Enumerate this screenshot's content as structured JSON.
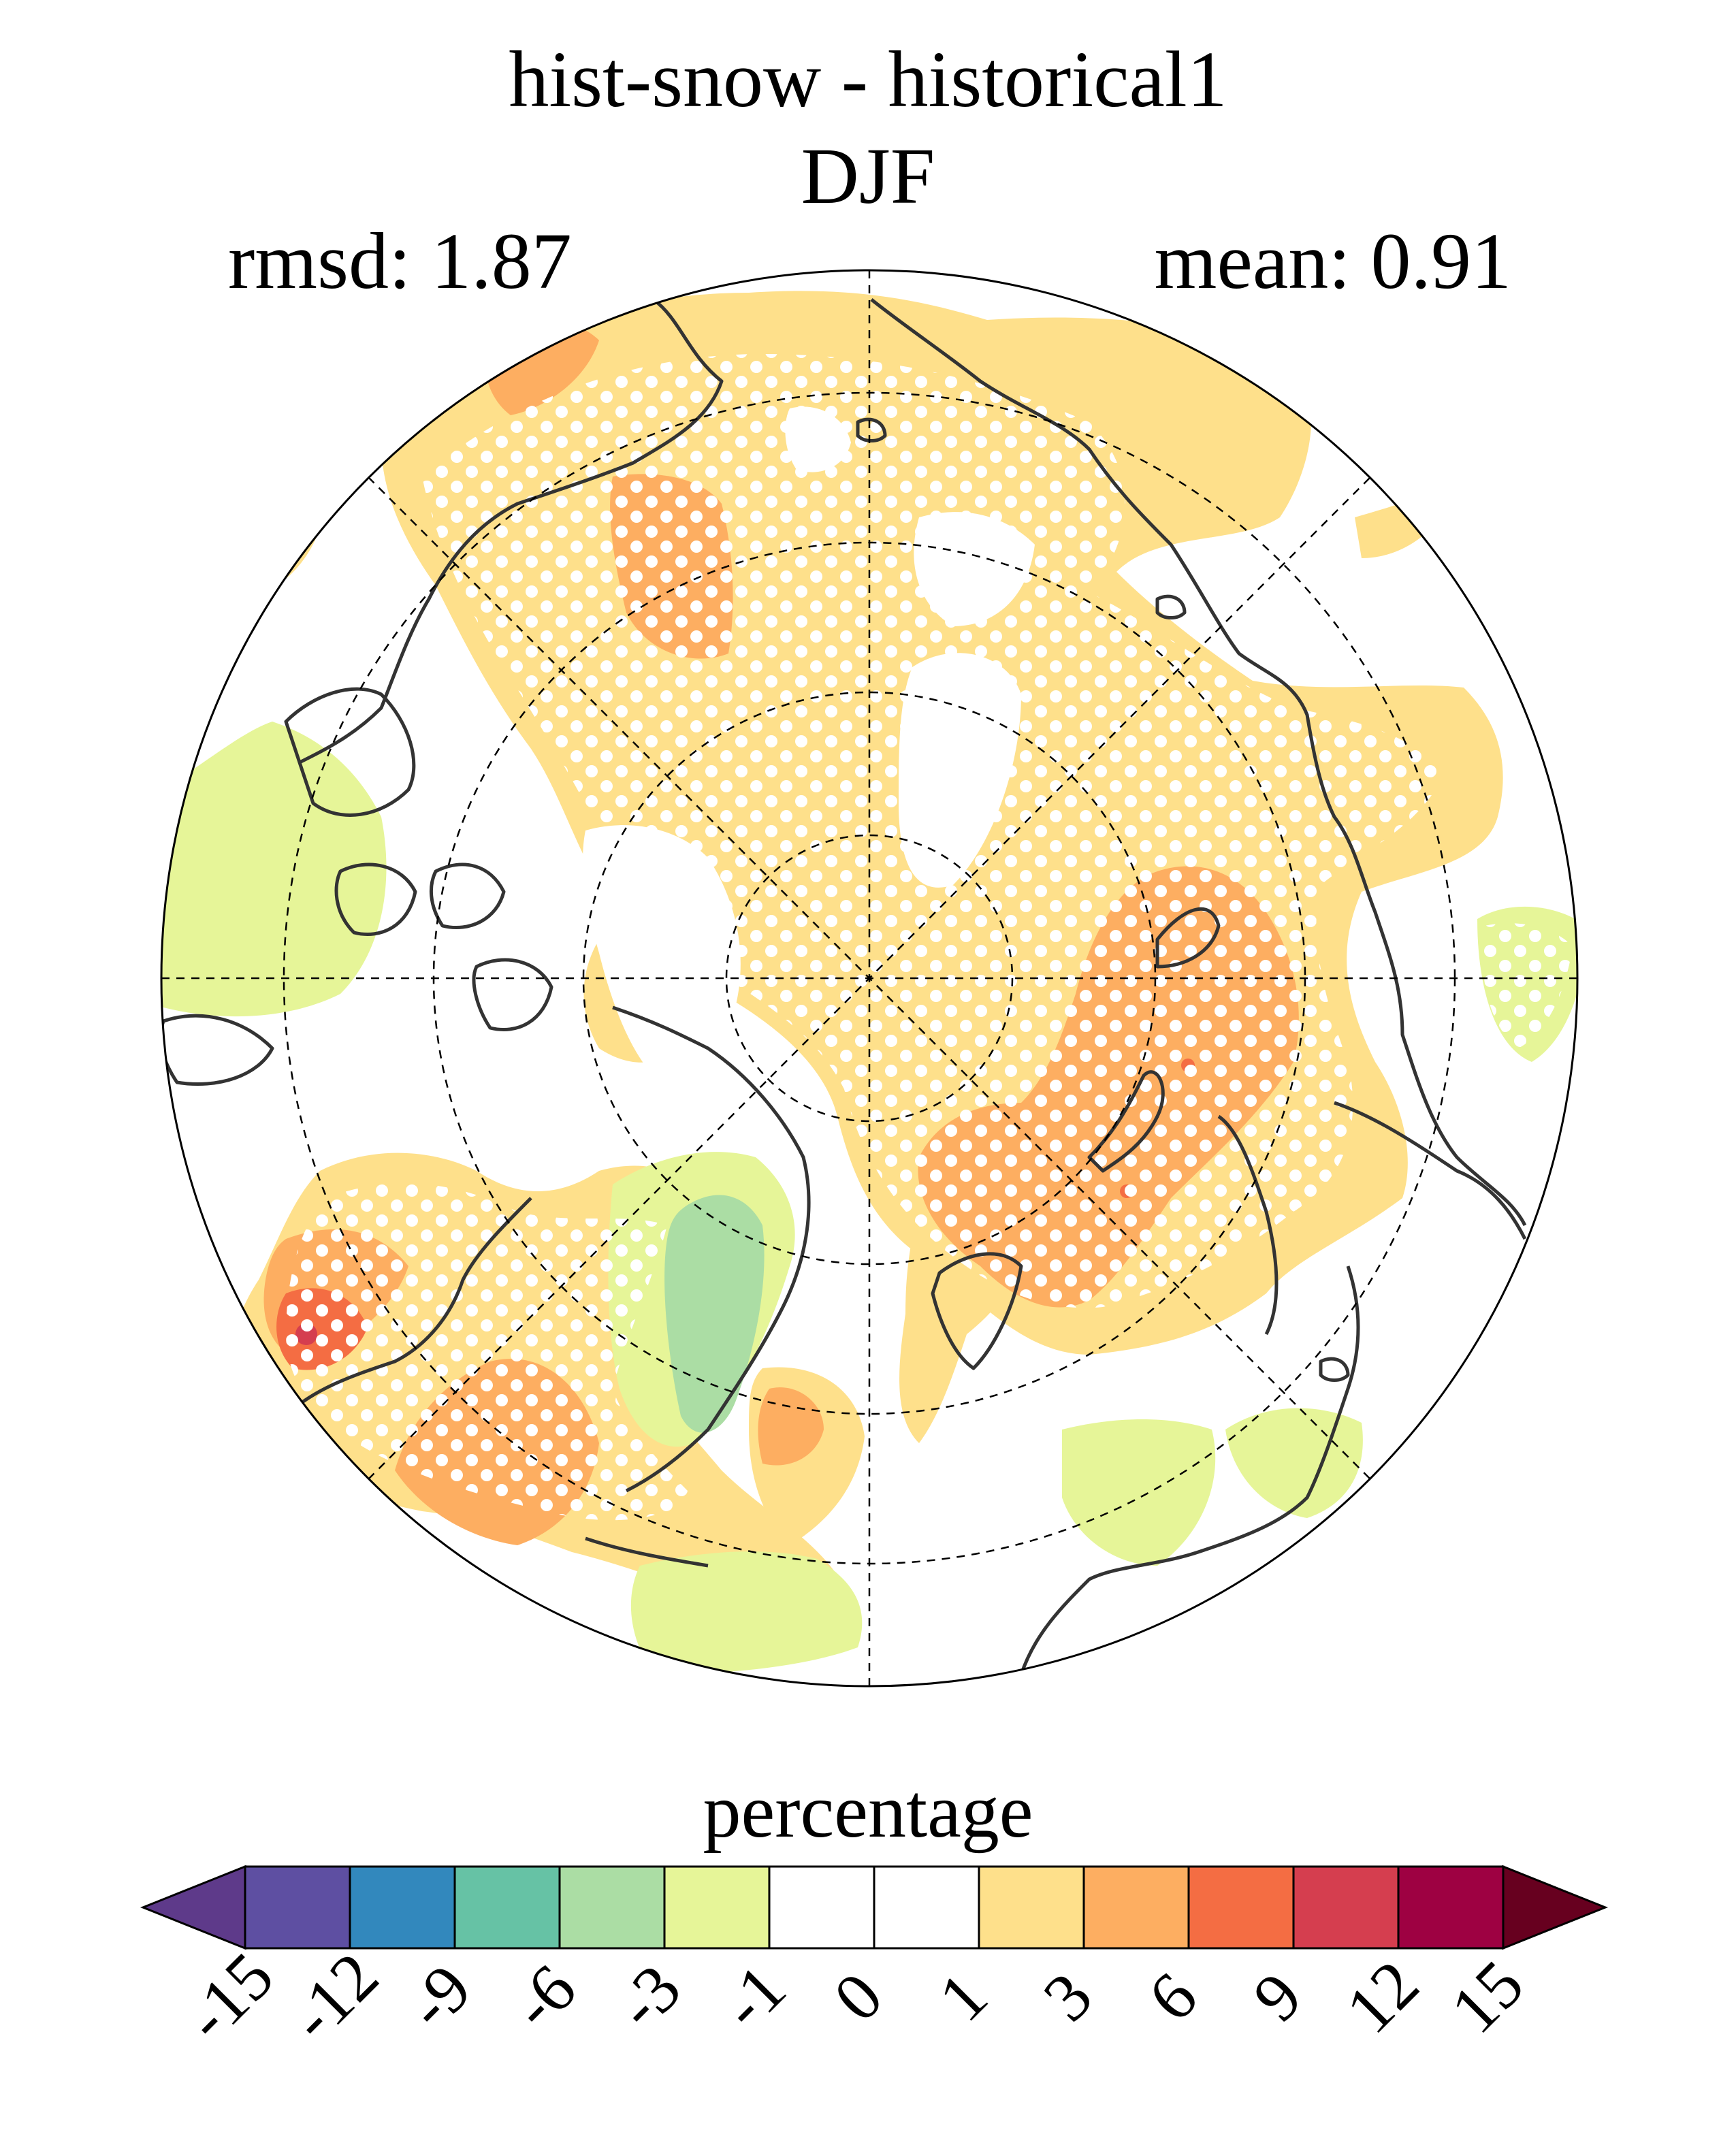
{
  "title": "hist-snow - historical1",
  "subtitle": "DJF",
  "stats": {
    "rmsd": "rmsd: 1.87",
    "mean": "mean: 0.91"
  },
  "colorbar": {
    "label": "percentage",
    "ticks": [
      "-15",
      "-12",
      "-9",
      "-6",
      "-3",
      "-1",
      "0",
      "1",
      "3",
      "6",
      "9",
      "12",
      "15"
    ],
    "colors": [
      "#5e3a8a",
      "#5e4fa2",
      "#3288bd",
      "#66c2a5",
      "#abdda4",
      "#e6f598",
      "#ffffff",
      "#ffffff",
      "#fee08b",
      "#fdae61",
      "#f46d43",
      "#d53e4f",
      "#9e0142",
      "#67001f"
    ]
  },
  "map": {
    "projection": "north-polar-stereographic",
    "stippling": "white dots mark significant regions",
    "palette": {
      "light-orange": "#fee08b",
      "orange": "#fdae61",
      "red-orange": "#f46d43",
      "red": "#d53e4f",
      "light-green": "#e6f598",
      "green": "#abdda4",
      "coastline": "#333333"
    }
  }
}
